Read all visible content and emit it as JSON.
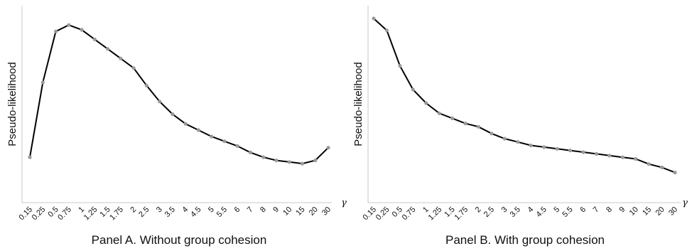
{
  "chart_data": [
    {
      "type": "line",
      "title": "Panel A. Without group cohesion",
      "ylabel": "Pseudo-likelihood",
      "xlabel": "γ",
      "categories": [
        "0.15",
        "0.25",
        "0.5",
        "0.75",
        "1",
        "1.25",
        "1.5",
        "1.75",
        "2",
        "2.5",
        "3",
        "3.5",
        "4",
        "4.5",
        "5",
        "5.5",
        "6",
        "7",
        "8",
        "9",
        "10",
        "15",
        "20",
        "30"
      ],
      "ylim": [
        0,
        1
      ],
      "values": [
        0.12,
        0.59,
        0.91,
        0.95,
        0.92,
        0.86,
        0.8,
        0.74,
        0.68,
        0.57,
        0.47,
        0.39,
        0.33,
        0.29,
        0.25,
        0.22,
        0.19,
        0.15,
        0.12,
        0.1,
        0.09,
        0.08,
        0.1,
        0.18
      ],
      "grid": false,
      "legend": "none"
    },
    {
      "type": "line",
      "title": "Panel B. With group cohesion",
      "ylabel": "Pseudo-likelihood",
      "xlabel": "γ",
      "categories": [
        "0.15",
        "0.25",
        "0.5",
        "0.75",
        "1",
        "1.25",
        "1.5",
        "1.75",
        "2",
        "2.5",
        "3",
        "3.5",
        "4",
        "4.5",
        "5",
        "5.5",
        "6",
        "7",
        "8",
        "9",
        "10",
        "15",
        "20",
        "30"
      ],
      "ylim": [
        0,
        1
      ],
      "values": [
        1.0,
        0.93,
        0.72,
        0.58,
        0.5,
        0.44,
        0.41,
        0.38,
        0.36,
        0.32,
        0.29,
        0.27,
        0.25,
        0.24,
        0.23,
        0.22,
        0.21,
        0.2,
        0.19,
        0.18,
        0.17,
        0.14,
        0.12,
        0.09
      ],
      "grid": false,
      "legend": "none"
    }
  ]
}
